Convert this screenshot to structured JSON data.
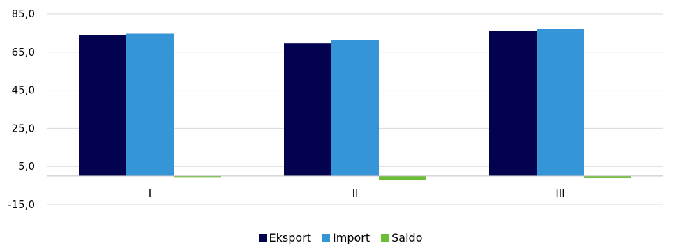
{
  "chart_data": {
    "type": "bar",
    "categories": [
      "I",
      "II",
      "III"
    ],
    "series": [
      {
        "name": "Eksport",
        "color": "#03024f",
        "values": [
          73.7,
          69.6,
          76.2
        ]
      },
      {
        "name": "Import",
        "color": "#3595d6",
        "values": [
          74.6,
          71.5,
          77.3
        ]
      },
      {
        "name": "Saldo",
        "color": "#6abf35",
        "values": [
          -0.9,
          -1.9,
          -1.1
        ]
      }
    ],
    "y_ticks": [
      "85,0",
      "65,0",
      "45,0",
      "25,0",
      "5,0",
      "-15,0"
    ],
    "ylim": [
      -15,
      85
    ],
    "grid": true,
    "legend": "bottom"
  }
}
